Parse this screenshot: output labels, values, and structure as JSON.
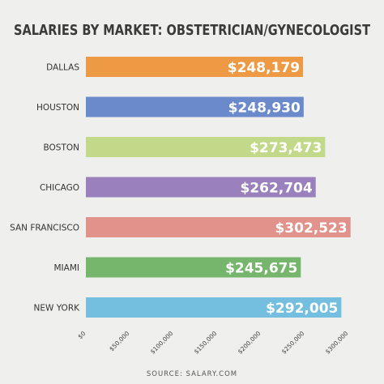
{
  "chart_data": {
    "type": "bar",
    "orientation": "horizontal",
    "title": "SALARIES BY MARKET: OBSTETRICIAN/GYNECOLOGIST",
    "categories": [
      "DALLAS",
      "HOUSTON",
      "BOSTON",
      "CHICAGO",
      "SAN FRANCISCO",
      "MIAMI",
      "NEW YORK"
    ],
    "values": [
      248179,
      248930,
      273473,
      262704,
      302523,
      245675,
      292005
    ],
    "value_labels": [
      "$248,179",
      "$248,930",
      "$273,473",
      "$262,704",
      "$302,523",
      "$245,675",
      "$292,005"
    ],
    "bar_colors": [
      "#ee9a45",
      "#6b8acb",
      "#c2d98a",
      "#9a80bd",
      "#e0928b",
      "#76b56c",
      "#74bedf"
    ],
    "xlim": [
      0,
      300000
    ],
    "x_ticks": [
      0,
      50000,
      100000,
      150000,
      200000,
      250000,
      300000
    ],
    "x_tick_labels": [
      "$0",
      "$50,000",
      "$100,000",
      "$150,000",
      "$200,000",
      "$250,000",
      "$300,000"
    ],
    "source": "SOURCE: SALARY.COM",
    "grid": false,
    "legend": "none"
  }
}
